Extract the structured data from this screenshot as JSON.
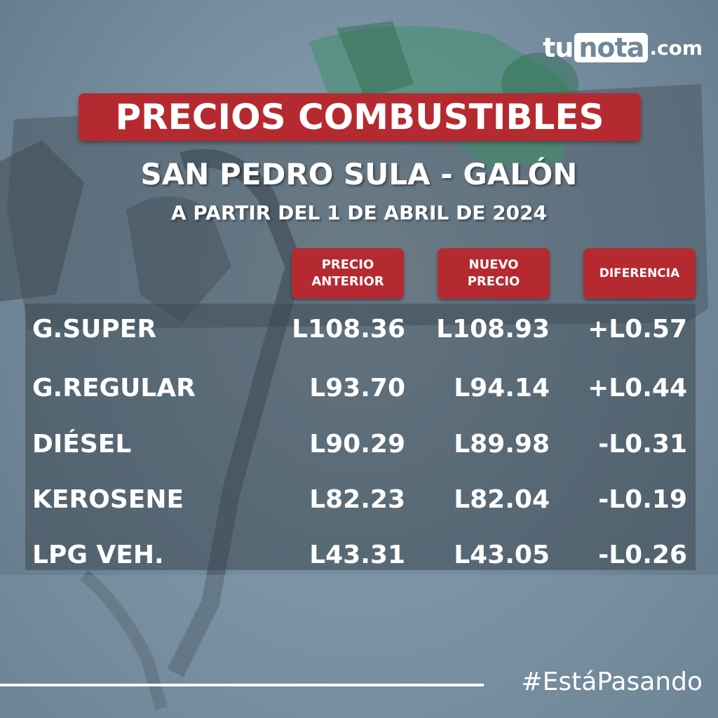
{
  "logo": {
    "prefix": "tu",
    "boxed": "nota",
    "suffix": ".com"
  },
  "title": "PRECIOS COMBUSTIBLES",
  "subtitle": "SAN PEDRO SULA - GALÓN",
  "date_line": "A PARTIR DEL 1 DE ABRIL DE 2024",
  "columns": {
    "previous": [
      "PRECIO",
      "ANTERIOR"
    ],
    "new": [
      "NUEVO",
      "PRECIO"
    ],
    "difference": "DIFERENCIA"
  },
  "rows": [
    {
      "fuel": "G.SUPER",
      "previous": "L108.36",
      "new": "L108.93",
      "difference": "+L0.57"
    },
    {
      "fuel": "G.REGULAR",
      "previous": "L93.70",
      "new": "L94.14",
      "difference": "+L0.44"
    },
    {
      "fuel": "DIÉSEL",
      "previous": "L90.29",
      "new": "L89.98",
      "difference": "-L0.31"
    },
    {
      "fuel": "KEROSENE",
      "previous": "L82.23",
      "new": "L82.04",
      "difference": "-L0.19"
    },
    {
      "fuel": "LPG VEH.",
      "previous": "L43.31",
      "new": "L43.05",
      "difference": "-L0.26"
    }
  ],
  "hashtag": "#EstáPasando",
  "colors": {
    "accent_red": "#b52a30",
    "background": "#7890a2"
  }
}
